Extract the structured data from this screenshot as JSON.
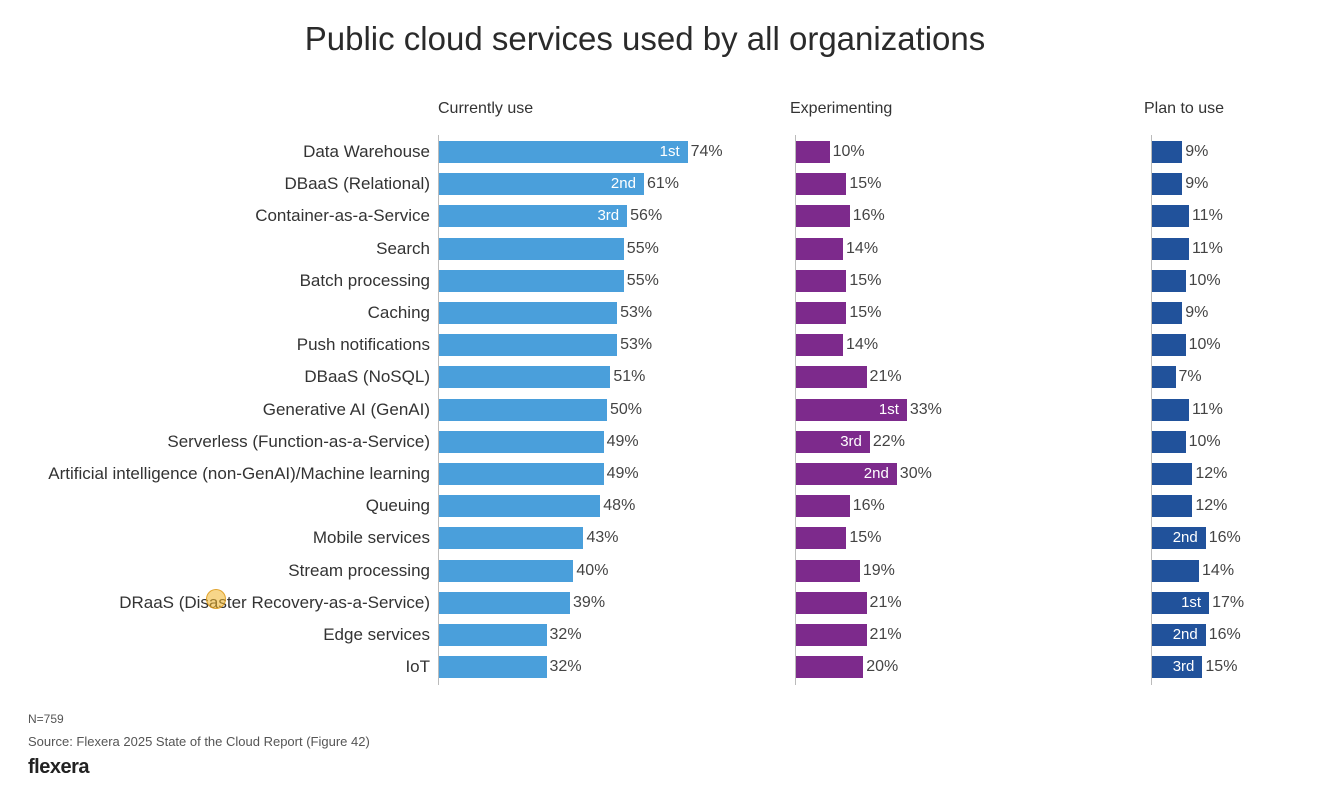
{
  "chart_data": {
    "type": "bar",
    "title": "Public cloud services used by all organizations",
    "categories": [
      "Data Warehouse",
      "DBaaS (Relational)",
      "Container-as-a-Service",
      "Search",
      "Batch processing",
      "Caching",
      "Push notifications",
      "DBaaS (NoSQL)",
      "Generative AI (GenAI)",
      "Serverless (Function-as-a-Service)",
      "Artificial intelligence (non-GenAI)/Machine learning",
      "Queuing",
      "Mobile services",
      "Stream processing",
      "DRaaS (Disaster Recovery-as-a-Service)",
      "Edge services",
      "IoT"
    ],
    "series": [
      {
        "name": "Currently use",
        "color": "#4a9fdb",
        "values": [
          74,
          61,
          56,
          55,
          55,
          53,
          53,
          51,
          50,
          49,
          49,
          48,
          43,
          40,
          39,
          32,
          32
        ],
        "ranks": [
          "1st",
          "2nd",
          "3rd",
          "",
          "",
          "",
          "",
          "",
          "",
          "",
          "",
          "",
          "",
          "",
          "",
          "",
          ""
        ]
      },
      {
        "name": "Experimenting",
        "color": "#7d2a8c",
        "values": [
          10,
          15,
          16,
          14,
          15,
          15,
          14,
          21,
          33,
          22,
          30,
          16,
          15,
          19,
          21,
          21,
          20
        ],
        "ranks": [
          "",
          "",
          "",
          "",
          "",
          "",
          "",
          "",
          "1st",
          "3rd",
          "2nd",
          "",
          "",
          "",
          "",
          "",
          ""
        ]
      },
      {
        "name": "Plan to use",
        "color": "#21529b",
        "values": [
          9,
          9,
          11,
          11,
          10,
          9,
          10,
          7,
          11,
          10,
          12,
          12,
          16,
          14,
          17,
          16,
          15
        ],
        "ranks": [
          "",
          "",
          "",
          "",
          "",
          "",
          "",
          "",
          "",
          "",
          "",
          "",
          "2nd",
          "",
          "1st",
          "2nd",
          "3rd"
        ]
      }
    ],
    "unit": "%",
    "xlim": [
      0,
      100
    ]
  },
  "footer": {
    "n": "N=759",
    "source": "Source: Flexera 2025 State of the Cloud Report (Figure 42)",
    "logo": "flexera"
  }
}
